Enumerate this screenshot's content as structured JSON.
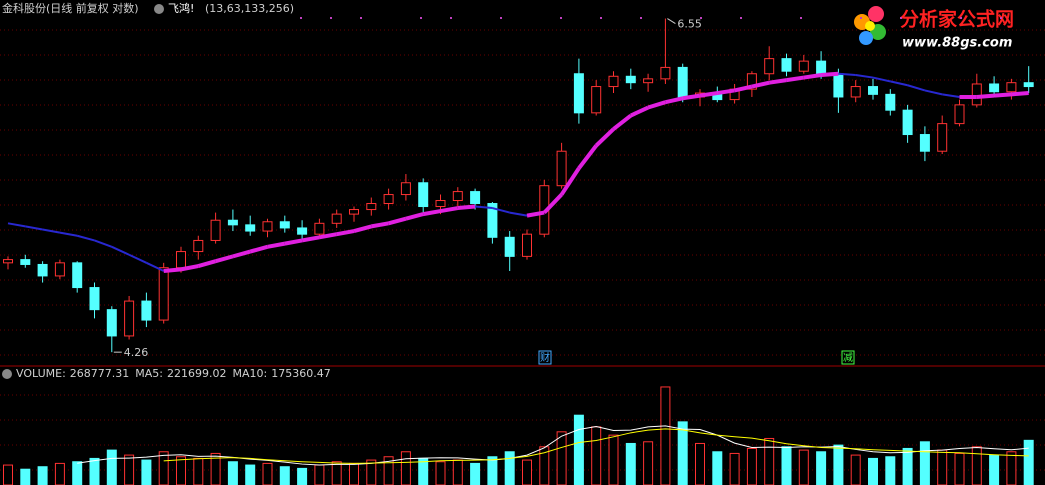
{
  "logo": {
    "title": "分析家公式网",
    "url": "www.88gs.com"
  },
  "chart_data": [
    {
      "type": "candlestick",
      "title": "金科股份(日线 前复权 对数)",
      "log": true,
      "ylim": [
        4.19,
        6.58
      ],
      "up_color": "#ff3232",
      "down_color": "#54ffff",
      "open": [
        4.78,
        4.8,
        4.77,
        4.7,
        4.78,
        4.63,
        4.5,
        4.35,
        4.55,
        4.44,
        4.75,
        4.85,
        4.92,
        5.05,
        5.02,
        4.98,
        5.04,
        5.0,
        4.96,
        5.03,
        5.09,
        5.12,
        5.16,
        5.22,
        5.3,
        5.14,
        5.18,
        5.24,
        5.16,
        4.94,
        4.82,
        4.96,
        5.28,
        6.1,
        5.8,
        6.0,
        6.08,
        6.03,
        6.06,
        6.15,
        5.92,
        5.95,
        5.9,
        5.98,
        6.1,
        6.22,
        6.12,
        6.2,
        6.1,
        5.92,
        6.0,
        5.94,
        5.82,
        5.64,
        5.52,
        5.72,
        5.86,
        6.02,
        5.96,
        6.03
      ],
      "high": [
        4.82,
        4.83,
        4.79,
        4.8,
        4.79,
        4.66,
        4.52,
        4.58,
        4.6,
        4.78,
        4.88,
        4.95,
        5.1,
        5.12,
        5.08,
        5.06,
        5.08,
        5.05,
        5.06,
        5.12,
        5.14,
        5.2,
        5.26,
        5.36,
        5.33,
        5.22,
        5.27,
        5.26,
        5.17,
        4.98,
        4.99,
        5.32,
        5.58,
        6.22,
        6.05,
        6.12,
        6.14,
        6.1,
        6.55,
        6.18,
        5.98,
        6.0,
        6.02,
        6.12,
        6.32,
        6.26,
        6.25,
        6.28,
        6.14,
        6.05,
        6.06,
        5.98,
        5.86,
        5.7,
        5.78,
        5.9,
        6.1,
        6.08,
        6.06,
        6.16
      ],
      "low": [
        4.74,
        4.75,
        4.66,
        4.68,
        4.6,
        4.45,
        4.26,
        4.33,
        4.4,
        4.42,
        4.72,
        4.8,
        4.9,
        4.98,
        4.95,
        4.94,
        4.97,
        4.93,
        4.94,
        5.0,
        5.04,
        5.08,
        5.12,
        5.18,
        5.1,
        5.09,
        5.14,
        5.12,
        4.9,
        4.73,
        4.8,
        4.94,
        5.26,
        5.72,
        5.78,
        5.95,
        5.98,
        5.96,
        6.02,
        5.88,
        5.85,
        5.88,
        5.87,
        5.92,
        6.05,
        6.08,
        6.1,
        6.06,
        5.8,
        5.88,
        5.9,
        5.78,
        5.58,
        5.45,
        5.5,
        5.7,
        5.84,
        5.92,
        5.9,
        5.95
      ],
      "close": [
        4.8,
        4.77,
        4.7,
        4.78,
        4.63,
        4.5,
        4.35,
        4.55,
        4.44,
        4.75,
        4.85,
        4.92,
        5.05,
        5.02,
        4.98,
        5.04,
        5.0,
        4.96,
        5.03,
        5.09,
        5.12,
        5.16,
        5.22,
        5.3,
        5.14,
        5.18,
        5.24,
        5.16,
        4.94,
        4.82,
        4.96,
        5.28,
        5.52,
        5.8,
        6.0,
        6.08,
        6.03,
        6.06,
        6.15,
        5.92,
        5.95,
        5.9,
        5.98,
        6.1,
        6.22,
        6.12,
        6.2,
        6.1,
        5.92,
        6.0,
        5.94,
        5.82,
        5.64,
        5.52,
        5.72,
        5.86,
        6.02,
        5.96,
        6.03,
        6.0
      ],
      "indicator": {
        "name": "飞鸿!",
        "params": "(13,63,133,256)",
        "up_color": "#e020e0",
        "down_color": "#2828d0",
        "values": [
          5.03,
          5.01,
          4.99,
          4.97,
          4.95,
          4.92,
          4.88,
          4.83,
          4.78,
          4.73,
          4.74,
          4.76,
          4.79,
          4.82,
          4.85,
          4.88,
          4.9,
          4.92,
          4.94,
          4.96,
          4.98,
          5.01,
          5.03,
          5.06,
          5.09,
          5.11,
          5.13,
          5.14,
          5.13,
          5.1,
          5.08,
          5.1,
          5.22,
          5.4,
          5.56,
          5.68,
          5.78,
          5.84,
          5.88,
          5.91,
          5.93,
          5.95,
          5.97,
          6.0,
          6.03,
          6.05,
          6.07,
          6.09,
          6.1,
          6.09,
          6.07,
          6.04,
          6.01,
          5.97,
          5.94,
          5.92,
          5.92,
          5.93,
          5.94,
          5.95
        ]
      },
      "events": [
        "财",
        "减"
      ]
    },
    {
      "type": "volume",
      "ylim": [
        0,
        680000
      ],
      "series": [
        {
          "name": "VOLUME:",
          "values": [
            120000,
            95000,
            110000,
            130000,
            140000,
            160000,
            210000,
            180000,
            150000,
            200000,
            170000,
            160000,
            190000,
            140000,
            120000,
            130000,
            110000,
            100000,
            120000,
            140000,
            130000,
            150000,
            170000,
            200000,
            160000,
            140000,
            150000,
            130000,
            170000,
            200000,
            150000,
            230000,
            320000,
            420000,
            350000,
            300000,
            250000,
            260000,
            590000,
            380000,
            250000,
            200000,
            190000,
            220000,
            280000,
            230000,
            210000,
            200000,
            240000,
            180000,
            160000,
            170000,
            220000,
            260000,
            210000,
            190000,
            230000,
            180000,
            200000,
            268777.31
          ]
        },
        {
          "name": "MA5:",
          "color": "#ffffff",
          "values": [
            null,
            null,
            null,
            null,
            131000,
            147000,
            160000,
            162000,
            168000,
            178000,
            182000,
            172000,
            174000,
            166000,
            156000,
            148000,
            138000,
            126000,
            120000,
            124000,
            124000,
            130000,
            142000,
            158000,
            162000,
            164000,
            163000,
            156000,
            150000,
            160000,
            180000,
            224000,
            294000,
            334000,
            352000,
            328000,
            330000,
            350000,
            356000,
            336000,
            334000,
            300000,
            252000,
            226000,
            228000,
            226000,
            230000,
            228000,
            232000,
            214000,
            200000,
            194000,
            196000,
            206000,
            210000,
            220000,
            226000,
            218000,
            212000,
            221699.02
          ]
        },
        {
          "name": "MA10:",
          "color": "#ffff00",
          "values": [
            null,
            null,
            null,
            null,
            null,
            null,
            null,
            null,
            null,
            145000,
            152000,
            158000,
            162000,
            165000,
            160000,
            152000,
            146000,
            140000,
            136000,
            132000,
            130000,
            132000,
            134000,
            136000,
            140000,
            146000,
            148000,
            150000,
            152000,
            160000,
            172000,
            194000,
            226000,
            256000,
            268000,
            290000,
            314000,
            330000,
            338000,
            332000,
            314000,
            300000,
            290000,
            282000,
            266000,
            248000,
            236000,
            226000,
            222000,
            218000,
            212000,
            208000,
            204000,
            200000,
            196000,
            194000,
            188000,
            182000,
            178000,
            175360.47
          ]
        }
      ]
    }
  ]
}
